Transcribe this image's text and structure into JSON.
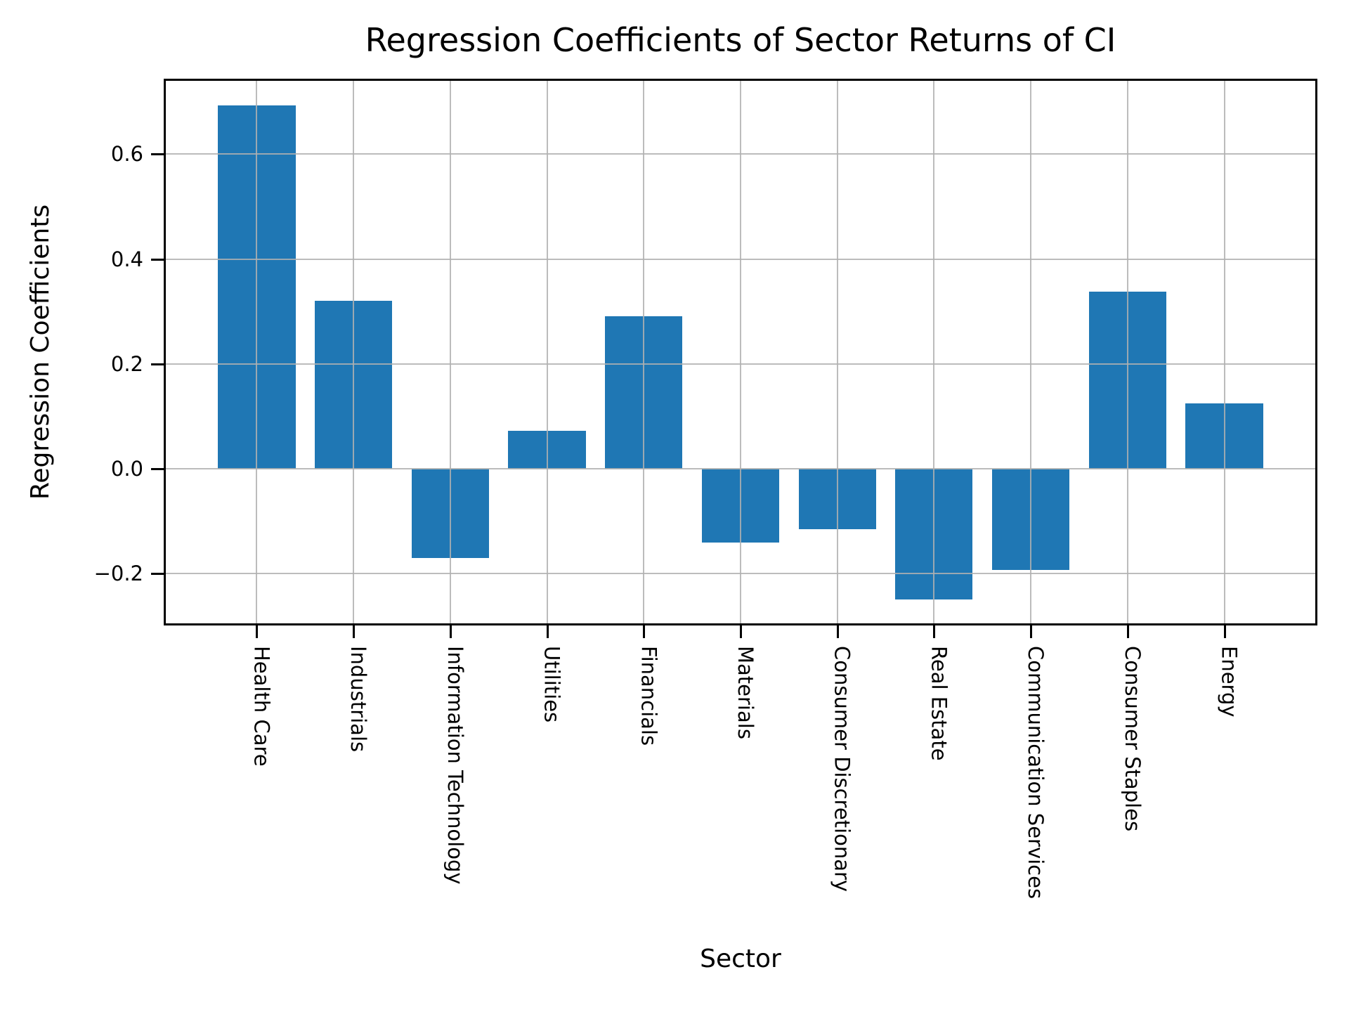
{
  "chart_data": {
    "type": "bar",
    "title": "Regression Coefficients of Sector Returns of CI",
    "xlabel": "Sector",
    "ylabel": "Regression Coefficients",
    "categories": [
      "Health Care",
      "Industrials",
      "Information Technology",
      "Utilities",
      "Financials",
      "Materials",
      "Consumer Discretionary",
      "Real Estate",
      "Communication Services",
      "Consumer Staples",
      "Energy"
    ],
    "values": [
      0.693,
      0.321,
      -0.17,
      0.073,
      0.291,
      -0.141,
      -0.116,
      -0.249,
      -0.193,
      0.338,
      0.124
    ],
    "ylim": [
      -0.295,
      0.74
    ],
    "xlim_units": [
      -0.94,
      10.94
    ],
    "bar_width_units": 0.8,
    "yticks": [
      {
        "value": 0.6,
        "label": "0.6"
      },
      {
        "value": 0.4,
        "label": "0.4"
      },
      {
        "value": 0.2,
        "label": "0.2"
      },
      {
        "value": 0.0,
        "label": "0.0"
      },
      {
        "value": -0.2,
        "label": "−0.2"
      }
    ],
    "grid": true,
    "legend": "none",
    "colors": {
      "bar": "#1f77b4",
      "grid": "#b0b0b0",
      "spine": "#000000",
      "background": "#ffffff"
    }
  }
}
